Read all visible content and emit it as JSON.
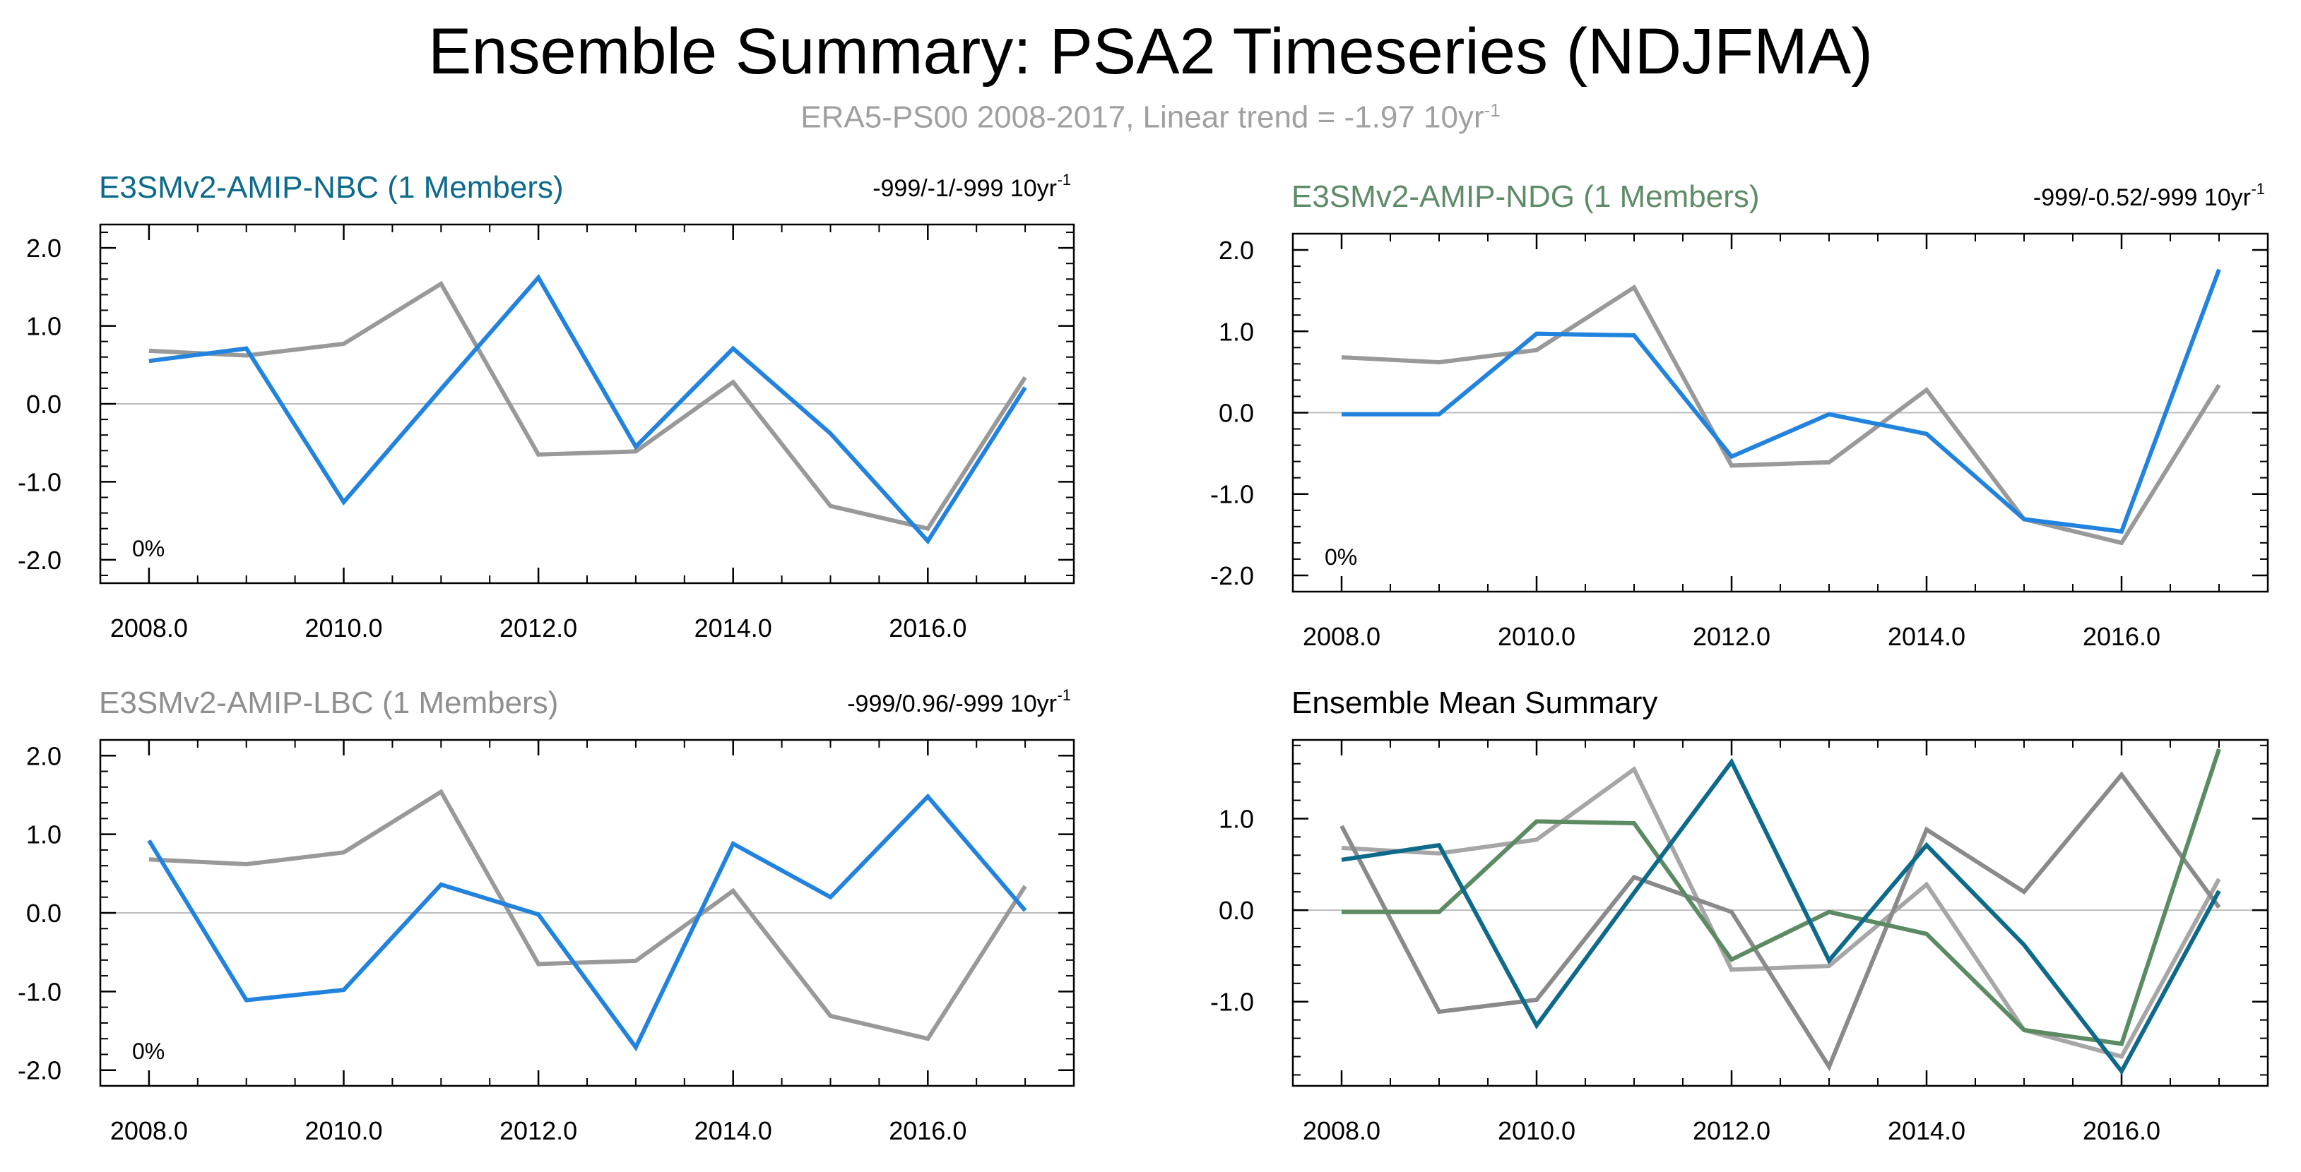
{
  "title": "Ensemble Summary: PSA2 Timeseries (NDJFMA)",
  "subtitle": {
    "text": "ERA5-PS00 2008-2017, Linear trend = -1.97 10yr",
    "superscript": "-1"
  },
  "colors": {
    "obs": "#999999",
    "nbc_line": "#2283de",
    "nbc_title": "#0e6a8a",
    "ndg_title": "#5f8c68",
    "ndg_mean": "#5b8a63",
    "lbc_title": "#8f8f8f",
    "lbc_mean": "#8a8a8a",
    "axis": "#000000",
    "zero": "#bdbdbd"
  },
  "chart_data": [
    {
      "type": "line",
      "panel": "top-left",
      "title": "E3SMv2-AMIP-NBC (1 Members)",
      "title_color": "#0e6a8a",
      "trend_text": "-999/-1/-999 10yr",
      "trend_sup": "-1",
      "annotation": "0%",
      "xlim": [
        2007.5,
        2017.5
      ],
      "ylim": [
        -2.3,
        2.3
      ],
      "yticks": [
        -2.0,
        -1.0,
        0.0,
        1.0,
        2.0
      ],
      "yticklabels": [
        "-2.0",
        "-1.0",
        "0.0",
        "1.0",
        "2.0"
      ],
      "xticks": [
        2008,
        2010,
        2012,
        2014,
        2016
      ],
      "xticklabels": [
        "2008.0",
        "2010.0",
        "2012.0",
        "2014.0",
        "2016.0"
      ],
      "x": [
        2008,
        2009,
        2010,
        2011,
        2012,
        2013,
        2014,
        2015,
        2016,
        2017
      ],
      "series": [
        {
          "name": "ERA5-PS00",
          "color": "#999999",
          "values": [
            0.68,
            0.62,
            0.77,
            1.54,
            -0.65,
            -0.61,
            0.28,
            -1.31,
            -1.6,
            0.34
          ]
        },
        {
          "name": "E3SMv2-AMIP-NBC",
          "color": "#2283de",
          "values": [
            0.55,
            0.71,
            -1.26,
            0.19,
            1.62,
            -0.55,
            0.71,
            -0.38,
            -1.76,
            0.21
          ]
        }
      ]
    },
    {
      "type": "line",
      "panel": "top-right",
      "title": "E3SMv2-AMIP-NDG (1 Members)",
      "title_color": "#5f8c68",
      "trend_text": "-999/-0.52/-999 10yr",
      "trend_sup": "-1",
      "annotation": "0%",
      "xlim": [
        2007.5,
        2017.5
      ],
      "ylim": [
        -2.2,
        2.2
      ],
      "yticks": [
        -2.0,
        -1.0,
        0.0,
        1.0,
        2.0
      ],
      "yticklabels": [
        "-2.0",
        "-1.0",
        "0.0",
        "1.0",
        "2.0"
      ],
      "xticks": [
        2008,
        2010,
        2012,
        2014,
        2016
      ],
      "xticklabels": [
        "2008.0",
        "2010.0",
        "2012.0",
        "2014.0",
        "2016.0"
      ],
      "x": [
        2008,
        2009,
        2010,
        2011,
        2012,
        2013,
        2014,
        2015,
        2016,
        2017
      ],
      "series": [
        {
          "name": "ERA5-PS00",
          "color": "#999999",
          "values": [
            0.68,
            0.62,
            0.77,
            1.54,
            -0.65,
            -0.61,
            0.28,
            -1.31,
            -1.6,
            0.34
          ]
        },
        {
          "name": "E3SMv2-AMIP-NDG",
          "color": "#2283de",
          "values": [
            -0.02,
            -0.02,
            0.97,
            0.95,
            -0.54,
            -0.02,
            -0.26,
            -1.31,
            -1.46,
            1.76
          ]
        }
      ]
    },
    {
      "type": "line",
      "panel": "bottom-left",
      "title": "E3SMv2-AMIP-LBC (1 Members)",
      "title_color": "#8f8f8f",
      "trend_text": "-999/0.96/-999 10yr",
      "trend_sup": "-1",
      "annotation": "0%",
      "xlim": [
        2007.5,
        2017.5
      ],
      "ylim": [
        -2.2,
        2.2
      ],
      "yticks": [
        -2.0,
        -1.0,
        0.0,
        1.0,
        2.0
      ],
      "yticklabels": [
        "-2.0",
        "-1.0",
        "0.0",
        "1.0",
        "2.0"
      ],
      "xticks": [
        2008,
        2010,
        2012,
        2014,
        2016
      ],
      "xticklabels": [
        "2008.0",
        "2010.0",
        "2012.0",
        "2014.0",
        "2016.0"
      ],
      "x": [
        2008,
        2009,
        2010,
        2011,
        2012,
        2013,
        2014,
        2015,
        2016,
        2017
      ],
      "series": [
        {
          "name": "ERA5-PS00",
          "color": "#999999",
          "values": [
            0.68,
            0.62,
            0.77,
            1.54,
            -0.65,
            -0.61,
            0.28,
            -1.31,
            -1.6,
            0.34
          ]
        },
        {
          "name": "E3SMv2-AMIP-LBC",
          "color": "#2283de",
          "values": [
            0.92,
            -1.11,
            -0.98,
            0.36,
            -0.02,
            -1.71,
            0.88,
            0.2,
            1.48,
            0.03
          ]
        }
      ]
    },
    {
      "type": "line",
      "panel": "bottom-right",
      "title": "Ensemble Mean Summary",
      "title_color": "#000000",
      "trend_text": "",
      "trend_sup": "",
      "annotation": "",
      "xlim": [
        2007.5,
        2017.5
      ],
      "ylim": [
        -1.92,
        1.86
      ],
      "yticks": [
        -1.0,
        0.0,
        1.0
      ],
      "yticklabels": [
        "-1.0",
        "0.0",
        "1.0"
      ],
      "xticks": [
        2008,
        2010,
        2012,
        2014,
        2016
      ],
      "xticklabels": [
        "2008.0",
        "2010.0",
        "2012.0",
        "2014.0",
        "2016.0"
      ],
      "x": [
        2008,
        2009,
        2010,
        2011,
        2012,
        2013,
        2014,
        2015,
        2016,
        2017
      ],
      "series": [
        {
          "name": "ERA5-PS00",
          "color": "#a6a6a6",
          "values": [
            0.68,
            0.62,
            0.77,
            1.54,
            -0.65,
            -0.61,
            0.28,
            -1.31,
            -1.6,
            0.34
          ]
        },
        {
          "name": "E3SMv2-AMIP-LBC",
          "color": "#8a8a8a",
          "values": [
            0.92,
            -1.11,
            -0.98,
            0.36,
            -0.02,
            -1.71,
            0.88,
            0.2,
            1.48,
            0.03
          ]
        },
        {
          "name": "E3SMv2-AMIP-NDG",
          "color": "#5b8a63",
          "values": [
            -0.02,
            -0.02,
            0.97,
            0.95,
            -0.54,
            -0.02,
            -0.26,
            -1.31,
            -1.46,
            1.76
          ]
        },
        {
          "name": "E3SMv2-AMIP-NBC",
          "color": "#0e6a8a",
          "values": [
            0.55,
            0.71,
            -1.26,
            0.19,
            1.62,
            -0.55,
            0.71,
            -0.38,
            -1.76,
            0.21
          ]
        }
      ]
    }
  ]
}
